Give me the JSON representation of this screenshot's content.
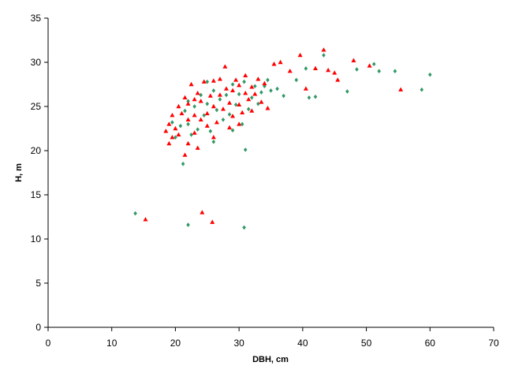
{
  "chart_data": {
    "type": "scatter",
    "x_label": "DBH, cm",
    "y_label": "H, m",
    "xlim": [
      0,
      70
    ],
    "xticks": [
      0,
      10,
      20,
      30,
      40,
      50,
      60,
      70
    ],
    "ylim": [
      0,
      35
    ],
    "yticks": [
      0,
      5,
      10,
      15,
      20,
      25,
      30,
      35
    ],
    "grid": false,
    "series": [
      {
        "color": "#339966",
        "marker": "diamond",
        "x": [
          13.7,
          22,
          30.8,
          21.2,
          31,
          43.3,
          47,
          48.5,
          51.2,
          52,
          54.5,
          58.7,
          60,
          41,
          42,
          40.5,
          39,
          37,
          36,
          34,
          19.5,
          20,
          20.8,
          21.5,
          22,
          22.5,
          23,
          23.5,
          24,
          24.5,
          25,
          25.5,
          26,
          26,
          26.5,
          27,
          27.5,
          28,
          28.5,
          29,
          29.5,
          30,
          30.5,
          30.8,
          31.5,
          32,
          32.5,
          33,
          33.5,
          34.5,
          35,
          29,
          25,
          22
        ],
        "values": [
          12.9,
          11.6,
          11.3,
          18.5,
          20.1,
          30.8,
          26.7,
          29.2,
          29.8,
          29,
          29,
          26.9,
          28.6,
          26,
          26.1,
          29.3,
          28,
          26.2,
          27,
          27.3,
          23.2,
          21.5,
          22.8,
          24.5,
          23,
          21.8,
          25,
          22.4,
          26.3,
          24,
          25.3,
          22.2,
          21,
          26.8,
          24.6,
          25.8,
          23.5,
          26.3,
          24.1,
          27.5,
          25.2,
          26.4,
          23,
          27.8,
          24.7,
          26,
          27.3,
          25.3,
          26.6,
          28,
          26.8,
          22.3,
          27.8,
          25.6
        ]
      },
      {
        "color": "#ff0000",
        "marker": "triangle",
        "x": [
          15.3,
          24.2,
          25.8,
          43.3,
          48,
          50.5,
          55.4,
          39.6,
          36.5,
          35.5,
          38,
          42,
          44,
          45,
          45.5,
          40.5,
          21.5,
          22,
          23.5,
          19,
          19.5,
          18.5,
          19,
          19.5,
          20,
          20.5,
          20.5,
          21,
          21.5,
          22,
          22,
          22.5,
          23,
          23,
          23.5,
          24,
          24,
          24.5,
          25,
          25,
          25.5,
          26,
          26,
          26.5,
          27,
          27.5,
          27.8,
          28,
          28.5,
          29,
          29,
          29.5,
          30,
          30,
          30.5,
          31,
          31,
          31.5,
          32,
          32,
          32.5,
          33,
          33.5,
          34,
          34.5,
          27,
          28.5,
          26,
          23,
          30
        ],
        "values": [
          12.2,
          13,
          11.9,
          31.4,
          30.2,
          29.6,
          26.9,
          30.8,
          30,
          29.8,
          29,
          29.3,
          29.1,
          28.8,
          28,
          27,
          19.5,
          20.8,
          20.3,
          20.8,
          21.5,
          22.2,
          23,
          24,
          22.5,
          25,
          21.8,
          24.2,
          26,
          23.5,
          25.3,
          27.5,
          24,
          22,
          26.5,
          23.5,
          25.6,
          27.8,
          24.2,
          22.8,
          26.2,
          27.9,
          25,
          23.2,
          26.3,
          24.7,
          29.5,
          27,
          25.4,
          26.8,
          23.9,
          28,
          25.2,
          27.4,
          24.3,
          26.5,
          28.5,
          25.8,
          27.2,
          24.5,
          26.4,
          28.1,
          25.5,
          27.6,
          24.8,
          28.1,
          22.6,
          21.5,
          25.8,
          23
        ]
      }
    ]
  }
}
